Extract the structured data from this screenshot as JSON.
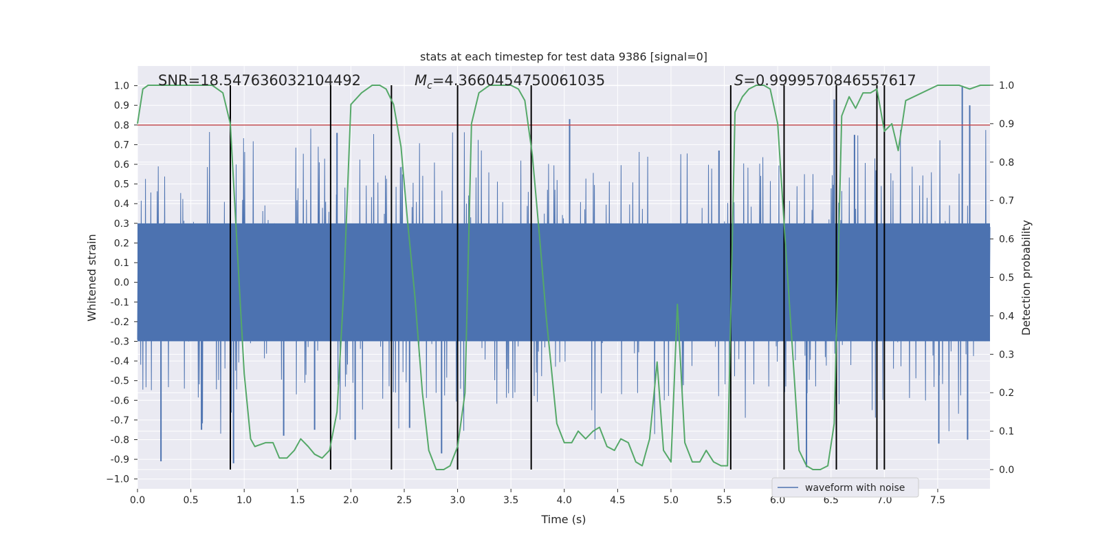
{
  "chart_data": {
    "type": "line",
    "title": "stats at each timestep for test data 9386 [signal=0]",
    "xlabel": "Time (s)",
    "ylabel": "Whitened strain",
    "y2label": "Detection probability",
    "xlim": [
      0,
      7.99
    ],
    "ylim": [
      -1.05,
      1.1
    ],
    "y2lim": [
      -0.05,
      1.05
    ],
    "xticks": [
      "0.0",
      "0.5",
      "1.0",
      "1.5",
      "2.0",
      "2.5",
      "3.0",
      "3.5",
      "4.0",
      "4.5",
      "5.0",
      "5.5",
      "6.0",
      "6.5",
      "7.0",
      "7.5"
    ],
    "yticks": [
      "1.0",
      "0.9",
      "0.8",
      "0.7",
      "0.6",
      "0.5",
      "0.4",
      "0.3",
      "0.2",
      "0.1",
      "0.0",
      "-0.1",
      "-0.2",
      "-0.3",
      "-0.4",
      "-0.5",
      "-0.6",
      "-0.7",
      "-0.8",
      "-0.9",
      "−1.0"
    ],
    "y2ticks": [
      "1.0",
      "0.9",
      "0.8",
      "0.7",
      "0.6",
      "0.5",
      "0.4",
      "0.3",
      "0.2",
      "0.1",
      "0.0"
    ],
    "annotations": {
      "snr": "SNR=18.547636032104492",
      "mc_symbol": "M",
      "mc_sub": "c",
      "mc_value": "=4.3660454750061035",
      "s_symbol": "S",
      "s_value": "=0.9999570846557617"
    },
    "threshold": 0.8,
    "legend": {
      "label": "waveform with noise",
      "location": "lower-right"
    },
    "waveform": {
      "name": "waveform with noise",
      "color": "#4c72b0",
      "core_amplitude": 0.3,
      "peaks": [
        {
          "x": 0.22,
          "y": -0.91
        },
        {
          "x": 0.6,
          "y": -0.75
        },
        {
          "x": 0.9,
          "y": -0.92
        },
        {
          "x": 1.37,
          "y": -0.78
        },
        {
          "x": 1.66,
          "y": -0.75
        },
        {
          "x": 1.87,
          "y": 0.76
        },
        {
          "x": 2.04,
          "y": -0.8
        },
        {
          "x": 2.55,
          "y": -0.74
        },
        {
          "x": 2.85,
          "y": -0.87
        },
        {
          "x": 4.05,
          "y": 0.83
        },
        {
          "x": 5.45,
          "y": 0.67
        },
        {
          "x": 6.27,
          "y": -0.94
        },
        {
          "x": 6.53,
          "y": 0.93
        },
        {
          "x": 6.72,
          "y": 0.75
        },
        {
          "x": 7.51,
          "y": -0.82
        },
        {
          "x": 7.73,
          "y": 1.0
        },
        {
          "x": 7.8,
          "y": 0.9
        },
        {
          "x": 7.78,
          "y": -0.8
        }
      ]
    },
    "detection_probability": {
      "color": "#55a868",
      "x": [
        0.0,
        0.05,
        0.1,
        0.2,
        0.3,
        0.4,
        0.5,
        0.6,
        0.7,
        0.8,
        0.87,
        0.93,
        1.0,
        1.06,
        1.1,
        1.2,
        1.27,
        1.33,
        1.4,
        1.47,
        1.53,
        1.6,
        1.66,
        1.73,
        1.8,
        1.87,
        1.93,
        2.0,
        2.1,
        2.2,
        2.27,
        2.33,
        2.4,
        2.47,
        2.53,
        2.6,
        2.67,
        2.73,
        2.8,
        2.87,
        2.93,
        3.0,
        3.07,
        3.13,
        3.2,
        3.3,
        3.4,
        3.5,
        3.57,
        3.63,
        3.7,
        3.77,
        3.83,
        3.93,
        4.0,
        4.07,
        4.13,
        4.2,
        4.27,
        4.33,
        4.4,
        4.47,
        4.53,
        4.6,
        4.67,
        4.73,
        4.8,
        4.87,
        4.93,
        5.0,
        5.06,
        5.13,
        5.2,
        5.27,
        5.33,
        5.4,
        5.47,
        5.53,
        5.6,
        5.67,
        5.73,
        5.8,
        5.87,
        5.93,
        6.0,
        6.07,
        6.13,
        6.2,
        6.27,
        6.33,
        6.4,
        6.47,
        6.53,
        6.6,
        6.67,
        6.73,
        6.8,
        6.87,
        6.93,
        7.0,
        7.07,
        7.13,
        7.2,
        7.5,
        7.7,
        7.8,
        7.9,
        7.99
      ],
      "y": [
        0.9,
        0.99,
        1.0,
        1.0,
        1.0,
        1.0,
        1.0,
        1.0,
        1.0,
        0.98,
        0.9,
        0.6,
        0.25,
        0.08,
        0.06,
        0.07,
        0.07,
        0.03,
        0.03,
        0.05,
        0.08,
        0.06,
        0.04,
        0.03,
        0.05,
        0.15,
        0.45,
        0.95,
        0.98,
        1.0,
        1.0,
        0.99,
        0.95,
        0.84,
        0.65,
        0.45,
        0.2,
        0.05,
        0.0,
        0.0,
        0.01,
        0.06,
        0.2,
        0.9,
        0.98,
        1.0,
        1.0,
        1.0,
        0.99,
        0.96,
        0.82,
        0.6,
        0.4,
        0.12,
        0.07,
        0.07,
        0.1,
        0.08,
        0.1,
        0.11,
        0.06,
        0.05,
        0.08,
        0.07,
        0.02,
        0.01,
        0.08,
        0.28,
        0.05,
        0.02,
        0.43,
        0.07,
        0.02,
        0.02,
        0.05,
        0.02,
        0.01,
        0.01,
        0.93,
        0.97,
        0.99,
        1.0,
        1.0,
        0.99,
        0.9,
        0.6,
        0.35,
        0.05,
        0.01,
        0.0,
        0.0,
        0.01,
        0.12,
        0.92,
        0.97,
        0.94,
        0.98,
        0.98,
        0.99,
        0.88,
        0.9,
        0.83,
        0.96,
        1.0,
        1.0,
        0.99,
        1.0,
        1.0
      ]
    },
    "segment_boundaries": [
      0.87,
      1.81,
      2.38,
      3.0,
      3.69,
      5.56,
      6.06,
      6.55,
      6.93,
      7.0
    ]
  }
}
